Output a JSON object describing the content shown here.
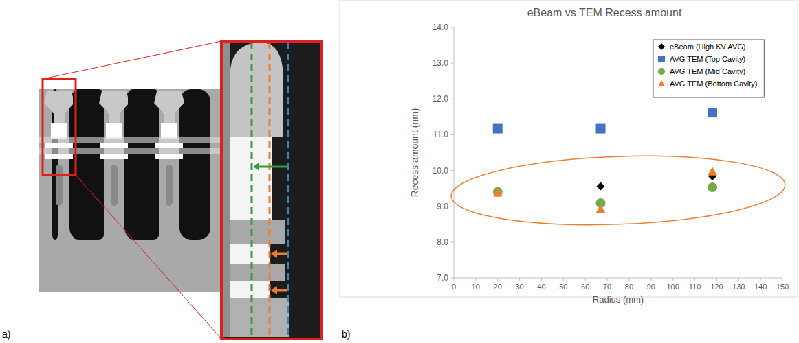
{
  "chart_data": {
    "type": "scatter",
    "title": "eBeam vs TEM Recess amount",
    "x_label": "Radius (mm)",
    "y_label": "Recess amount (nm)",
    "xlim": [
      0,
      150
    ],
    "xticks": [
      0,
      10,
      20,
      30,
      40,
      50,
      60,
      70,
      80,
      90,
      100,
      110,
      120,
      130,
      140,
      150
    ],
    "ylim": [
      7,
      14
    ],
    "yticks": [
      {
        "value": 7,
        "label": "7.0"
      },
      {
        "value": 8,
        "label": "8.0"
      },
      {
        "value": 9,
        "label": "9.0"
      },
      {
        "value": 10,
        "label": "10.0"
      },
      {
        "value": 11,
        "label": "11.0"
      },
      {
        "value": 12,
        "label": "12.0"
      },
      {
        "value": 13,
        "label": "13.0"
      },
      {
        "value": 14,
        "label": "14.0"
      }
    ],
    "grid": false,
    "legend": "top-right",
    "series": [
      {
        "name": "eBeam (High KV AVG)",
        "color": "#000000",
        "marker": "diamond",
        "x": [
          20,
          67,
          118
        ],
        "values": [
          9.42,
          9.56,
          9.84
        ]
      },
      {
        "name": "AVG TEM (Top Cavity)",
        "color": "#4472c4",
        "marker": "square",
        "x": [
          20,
          67,
          118
        ],
        "values": [
          11.17,
          11.17,
          11.62
        ]
      },
      {
        "name": "AVG TEM (Mid Cavity)",
        "color": "#70ad47",
        "marker": "circle",
        "x": [
          20,
          67,
          118
        ],
        "values": [
          9.4,
          9.09,
          9.53
        ]
      },
      {
        "name": "AVG TEM (Bottom Cavity)",
        "color": "#ed7d31",
        "marker": "triangle",
        "x": [
          20,
          67,
          118
        ],
        "values": [
          9.38,
          8.92,
          9.97
        ]
      }
    ]
  },
  "panel_labels": [
    "a)",
    "b)"
  ]
}
